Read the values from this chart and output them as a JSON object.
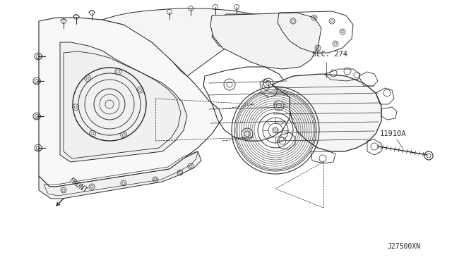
{
  "bg_color": "#ffffff",
  "line_color": "#2a2a2a",
  "label_sec274": "SEC. 274",
  "label_11910a": "11910A",
  "label_front": "FRONT",
  "label_j27500xn": "J27500XN",
  "fig_width": 6.4,
  "fig_height": 3.72,
  "dpi": 100
}
